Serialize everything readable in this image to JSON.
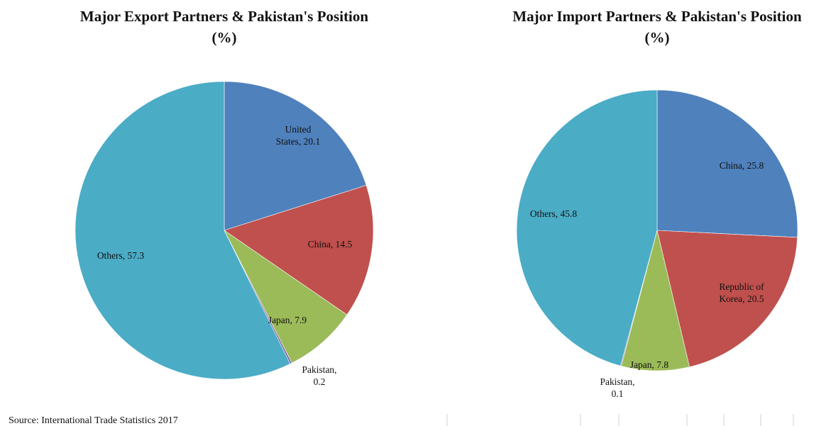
{
  "chart_data": [
    {
      "type": "pie",
      "title": "Major Export Partners & Pakistan's Position",
      "subtitle": "(%)",
      "categories": [
        "United States",
        "China",
        "Japan",
        "Pakistan",
        "Others"
      ],
      "values": [
        20.1,
        14.5,
        7.9,
        0.2,
        57.3
      ],
      "value_labels": [
        "United States, 20.1",
        "China, 14.5",
        "Japan, 7.9",
        "Pakistan, 0.2",
        "Others, 57.3"
      ],
      "colors": [
        "#4f81bd",
        "#c0504d",
        "#9bbb59",
        "#8064a2",
        "#4bacc6"
      ]
    },
    {
      "type": "pie",
      "title": "Major Import Partners & Pakistan's Position",
      "subtitle": "(%)",
      "categories": [
        "China",
        "Republic of Korea",
        "Japan",
        "Pakistan",
        "Others"
      ],
      "values": [
        25.8,
        20.5,
        7.8,
        0.1,
        45.8
      ],
      "value_labels": [
        "China, 25.8",
        "Republic of Korea, 20.5",
        "Japan, 7.8",
        "Pakistan, 0.1",
        "Others, 45.8"
      ],
      "colors": [
        "#4f81bd",
        "#c0504d",
        "#9bbb59",
        "#8064a2",
        "#4bacc6"
      ]
    }
  ],
  "source": "Source: International Trade Statistics 2017"
}
